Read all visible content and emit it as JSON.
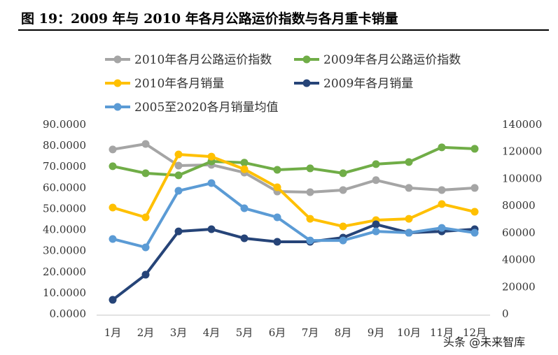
{
  "title": "图 19：2009 年与 2010 年各月公路运价指数与各月重卡销量",
  "watermark": "头条 @未来智库",
  "chart_data": {
    "type": "line",
    "categories": [
      "1月",
      "2月",
      "3月",
      "4月",
      "5月",
      "6月",
      "7月",
      "8月",
      "9月",
      "10月",
      "11月",
      "12月"
    ],
    "left_axis": {
      "ylim": [
        0,
        90
      ],
      "ticks": [
        "0.0000",
        "10.0000",
        "20.0000",
        "30.0000",
        "40.0000",
        "50.0000",
        "60.0000",
        "70.0000",
        "80.0000",
        "90.0000"
      ]
    },
    "right_axis": {
      "ylim": [
        0,
        140000
      ],
      "ticks": [
        "0",
        "20000",
        "40000",
        "60000",
        "80000",
        "100000",
        "120000",
        "140000"
      ]
    },
    "legend_position": "top",
    "grid": false,
    "series": [
      {
        "name": "2010年各月公路运价指数",
        "axis": "left",
        "color": "#a5a5a5",
        "values": [
          78.1,
          80.7,
          70.4,
          70.8,
          67.1,
          58.1,
          57.8,
          58.8,
          63.5,
          59.8,
          58.8,
          59.8
        ]
      },
      {
        "name": "2009年各月公路运价指数",
        "axis": "left",
        "color": "#70ad47",
        "values": [
          70.1,
          66.8,
          65.8,
          72.4,
          71.8,
          68.4,
          69.1,
          66.8,
          71.1,
          72.1,
          79.1,
          78.4
        ]
      },
      {
        "name": "2010年各月销量",
        "axis": "right",
        "color": "#ffc000",
        "values": [
          78500,
          71300,
          117800,
          116200,
          106900,
          93500,
          70200,
          64600,
          69200,
          70200,
          81100,
          75400
        ]
      },
      {
        "name": "2009年各月销量",
        "axis": "right",
        "color": "#264478",
        "values": [
          10300,
          28900,
          60900,
          62500,
          55800,
          53200,
          53200,
          56300,
          66100,
          59900,
          60900,
          62500
        ]
      },
      {
        "name": "2005至2020各月销量均值",
        "axis": "right",
        "color": "#5b9bd5",
        "values": [
          55300,
          49100,
          90900,
          96600,
          78000,
          71300,
          54200,
          54200,
          60900,
          59900,
          63500,
          59900
        ]
      }
    ]
  }
}
